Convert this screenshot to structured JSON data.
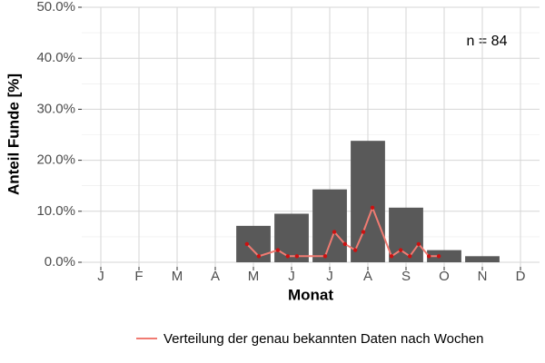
{
  "chart_data": {
    "type": "bar",
    "x_label": "Monat",
    "y_label": "Anteil Funde [%]",
    "annotation": "n = 84",
    "categories": [
      "J",
      "F",
      "M",
      "A",
      "M",
      "J",
      "J",
      "A",
      "S",
      "O",
      "N",
      "D"
    ],
    "values": [
      0,
      0,
      0,
      0,
      7.14,
      9.52,
      14.29,
      23.81,
      10.71,
      2.38,
      1.19,
      0
    ],
    "color": "#595959",
    "ylim": [
      0,
      50
    ],
    "yticks": [
      {
        "value": 0,
        "label": "0.0%"
      },
      {
        "value": 10,
        "label": "10.0%"
      },
      {
        "value": 20,
        "label": "20.0%"
      },
      {
        "value": 30,
        "label": "30.0%"
      },
      {
        "value": 40,
        "label": "40.0%"
      },
      {
        "value": 50,
        "label": "50.0%"
      }
    ],
    "grid": true,
    "overlay": {
      "type": "line",
      "name": "Verteilung der genau bekannten Daten nach Wochen",
      "color": "#f07b72",
      "point_color": "#cc1111",
      "x": [
        4.83,
        5.14,
        5.64,
        5.9,
        6.14,
        6.88,
        7.12,
        7.4,
        7.67,
        7.88,
        8.12,
        8.62,
        8.86,
        9.1,
        9.33,
        9.6,
        9.86
      ],
      "values": [
        3.57,
        1.19,
        2.38,
        1.19,
        1.19,
        1.19,
        5.95,
        3.57,
        2.38,
        5.95,
        10.71,
        1.19,
        2.38,
        1.19,
        3.57,
        1.19,
        1.19
      ]
    }
  }
}
